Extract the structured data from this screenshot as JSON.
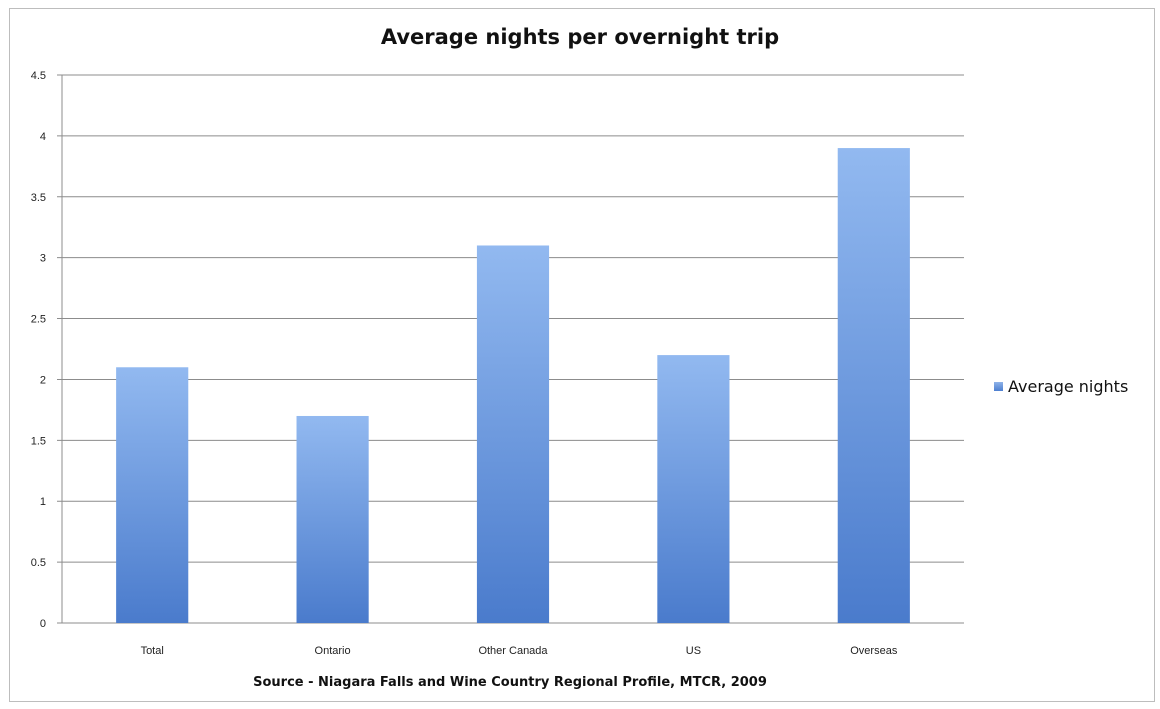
{
  "chart_data": {
    "type": "bar",
    "title": "Average nights per overnight trip",
    "categories": [
      "Total",
      "Ontario",
      "Other Canada",
      "US",
      "Overseas"
    ],
    "series": [
      {
        "name": "Average nights",
        "values": [
          2.1,
          1.7,
          3.1,
          2.2,
          3.9
        ]
      }
    ],
    "yticks": [
      "0",
      "0.5",
      "1",
      "1.5",
      "2",
      "2.5",
      "3",
      "3.5",
      "4",
      "4.5"
    ],
    "ylim": [
      0,
      4.5
    ],
    "grid": true,
    "legend_position": "right",
    "source": "Source - Niagara Falls and Wine Country Regional Profile, MTCR, 2009",
    "colors": {
      "bar_top": "#92b9f0",
      "bar_bottom": "#4a7bcc",
      "grid": "#8c8c8c"
    }
  }
}
